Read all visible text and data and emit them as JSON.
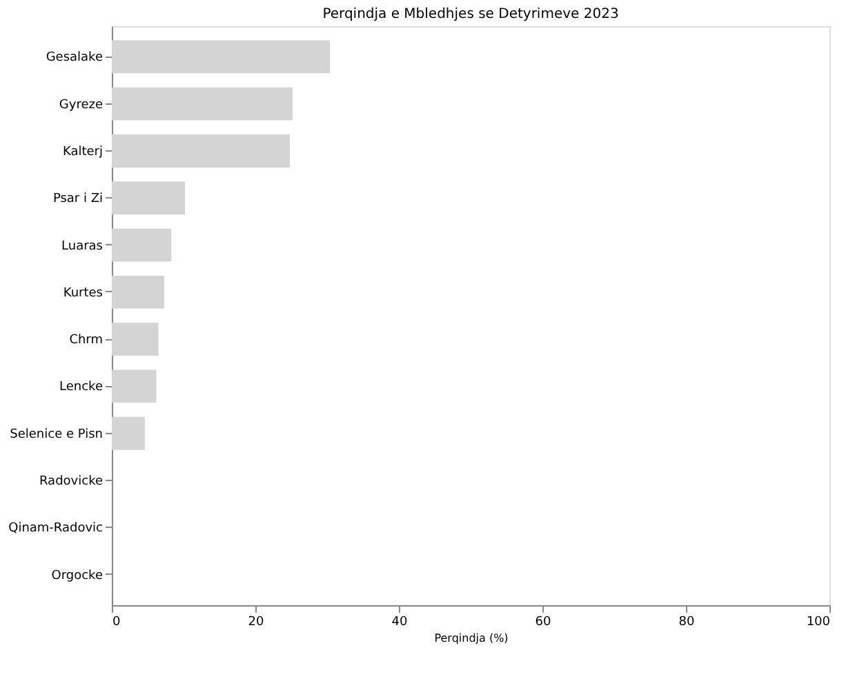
{
  "chart_data": {
    "type": "bar",
    "orientation": "horizontal",
    "title": "Perqindja e Mbledhjes se Detyrimeve 2023",
    "xlabel": "Perqindja (%)",
    "categories": [
      "Gesalake",
      "Gyreze",
      "Kalterj",
      "Psar i Zi",
      "Luaras",
      "Kurtes",
      "Chrm",
      "Lencke",
      "Selenice e Pisn",
      "Radovicke",
      "Qinam-Radovic",
      "Orgocke"
    ],
    "values": [
      30.4,
      25.2,
      24.8,
      10.2,
      8.3,
      7.3,
      6.5,
      6.2,
      4.6,
      0,
      0,
      0
    ],
    "color": "#d4d4d4",
    "xlim": [
      0,
      100
    ],
    "xticks": [
      0,
      20,
      40,
      60,
      80,
      100
    ],
    "grid": false
  }
}
